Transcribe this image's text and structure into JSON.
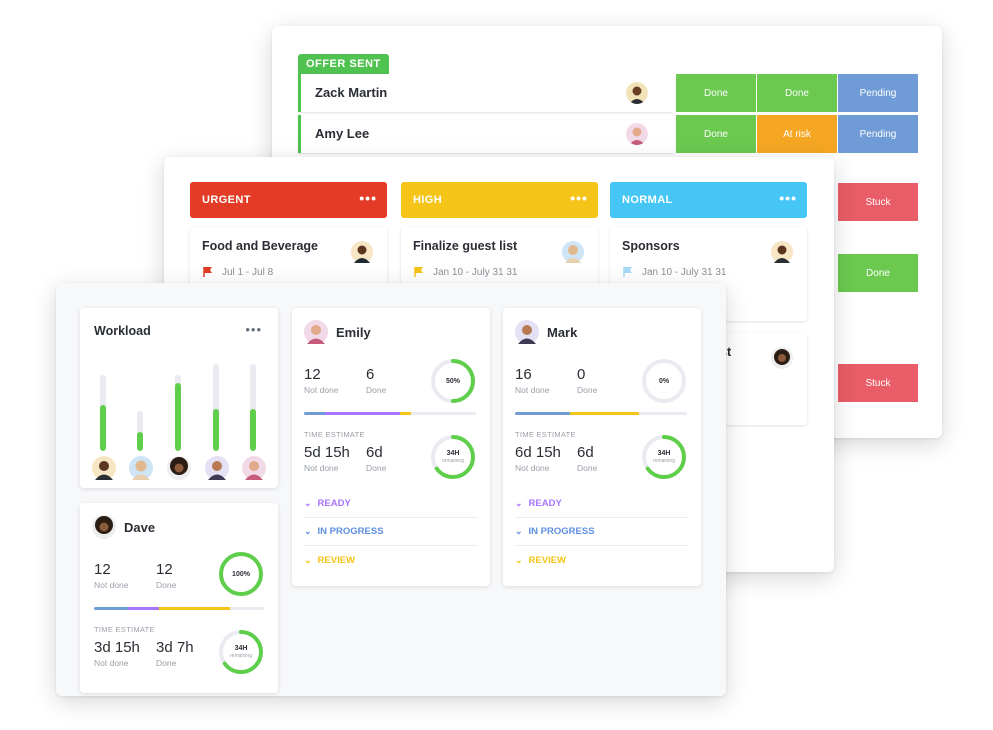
{
  "back_panel": {
    "group_label": "OFFER SENT",
    "rows": [
      {
        "name": "Zack Martin",
        "statuses": [
          "Done",
          "Done",
          "Pending"
        ]
      },
      {
        "name": "Amy Lee",
        "statuses": [
          "Done",
          "At risk",
          "Pending"
        ]
      }
    ],
    "side_statuses": [
      "Stuck",
      "Done",
      "Stuck"
    ]
  },
  "mid_panel": {
    "groups": [
      {
        "label": "URGENT",
        "menu": "•••"
      },
      {
        "label": "HIGH",
        "menu": "•••"
      },
      {
        "label": "NORMAL",
        "menu": "•••"
      }
    ],
    "tasks": [
      {
        "title": "Food and Beverage",
        "dates": "Jul 1 - Jul 8"
      },
      {
        "title": "Finalize guest list",
        "dates": "Jan 10 - July 31 31"
      },
      {
        "title": "Sponsors",
        "dates": "Jan 10 - July 31 31"
      }
    ],
    "partial_task_title": "st"
  },
  "workload": {
    "title": "Workload",
    "menu": "•••",
    "bars": [
      {
        "total": 0.8,
        "done": 0.48
      },
      {
        "total": 0.42,
        "done": 0.2
      },
      {
        "total": 0.8,
        "done": 0.72
      },
      {
        "total": 0.92,
        "done": 0.44
      },
      {
        "total": 0.92,
        "done": 0.44
      }
    ]
  },
  "people": {
    "dave": {
      "name": "Dave",
      "not_done": "12",
      "not_done_label": "Not done",
      "done": "12",
      "done_label": "Done",
      "ring_label": "100%",
      "ring_progress": 1.0,
      "time_estimate_label": "TIME ESTIMATE",
      "te_not_done": "3d 15h",
      "te_done": "3d 7h",
      "te_ring": "34H",
      "te_ring_sub": "remaining",
      "te_ring_progress": 0.65
    },
    "emily": {
      "name": "Emily",
      "not_done": "12",
      "not_done_label": "Not done",
      "done": "6",
      "done_label": "Done",
      "ring_label": "50%",
      "ring_progress": 0.5,
      "time_estimate_label": "TIME ESTIMATE",
      "te_not_done": "5d 15h",
      "te_done": "6d",
      "te_ring": "34H",
      "te_ring_sub": "remaining",
      "te_ring_progress": 0.65,
      "sections": [
        "READY",
        "IN PROGRESS",
        "REVIEW"
      ]
    },
    "mark": {
      "name": "Mark",
      "not_done": "16",
      "not_done_label": "Not done",
      "done": "0",
      "done_label": "Done",
      "ring_label": "0%",
      "ring_progress": 0.0,
      "time_estimate_label": "TIME ESTIMATE",
      "te_not_done": "6d 15h",
      "te_done": "6d",
      "te_ring": "34H",
      "te_ring_sub": "remaining",
      "te_ring_progress": 0.65,
      "sections": [
        "READY",
        "IN PROGRESS",
        "REVIEW"
      ]
    }
  },
  "colors": {
    "done": "#6bc950",
    "at_risk": "#f5a623",
    "pending": "#6f9bd6",
    "stuck": "#e85d67",
    "urgent": "#e33b26",
    "high": "#f5c418",
    "normal": "#46c6f5",
    "ring": "#5fce4a"
  },
  "icons": [
    "flag-icon",
    "chevron-down-icon",
    "more-dots-icon",
    "avatar"
  ]
}
